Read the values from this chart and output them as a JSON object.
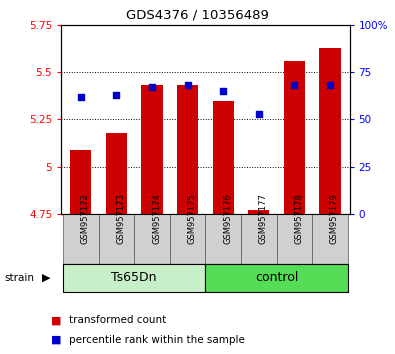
{
  "title": "GDS4376 / 10356489",
  "samples": [
    "GSM957172",
    "GSM957173",
    "GSM957174",
    "GSM957175",
    "GSM957176",
    "GSM957177",
    "GSM957178",
    "GSM957179"
  ],
  "transformed_counts": [
    5.09,
    5.18,
    5.43,
    5.43,
    5.35,
    4.77,
    5.56,
    5.63
  ],
  "percentile_ranks": [
    62,
    63,
    67,
    68,
    65,
    53,
    68,
    68
  ],
  "groups": [
    "Ts65Dn",
    "Ts65Dn",
    "Ts65Dn",
    "Ts65Dn",
    "control",
    "control",
    "control",
    "control"
  ],
  "group_colors_light": "#c8f0c8",
  "group_colors_dark": "#55dd55",
  "ylim_left": [
    4.75,
    5.75
  ],
  "ylim_right": [
    0,
    100
  ],
  "yticks_left": [
    4.75,
    5.0,
    5.25,
    5.5,
    5.75
  ],
  "ytick_labels_left": [
    "4.75",
    "5",
    "5.25",
    "5.5",
    "5.75"
  ],
  "yticks_right": [
    0,
    25,
    50,
    75,
    100
  ],
  "ytick_labels_right": [
    "0",
    "25",
    "50",
    "75",
    "100%"
  ],
  "bar_color": "#cc0000",
  "dot_color": "#0000cc",
  "bar_width": 0.6,
  "legend_items": [
    "transformed count",
    "percentile rank within the sample"
  ],
  "strain_label": "strain",
  "group_label_Ts65Dn": "Ts65Dn",
  "group_label_control": "control",
  "n_ts65dn": 4,
  "n_control": 4
}
